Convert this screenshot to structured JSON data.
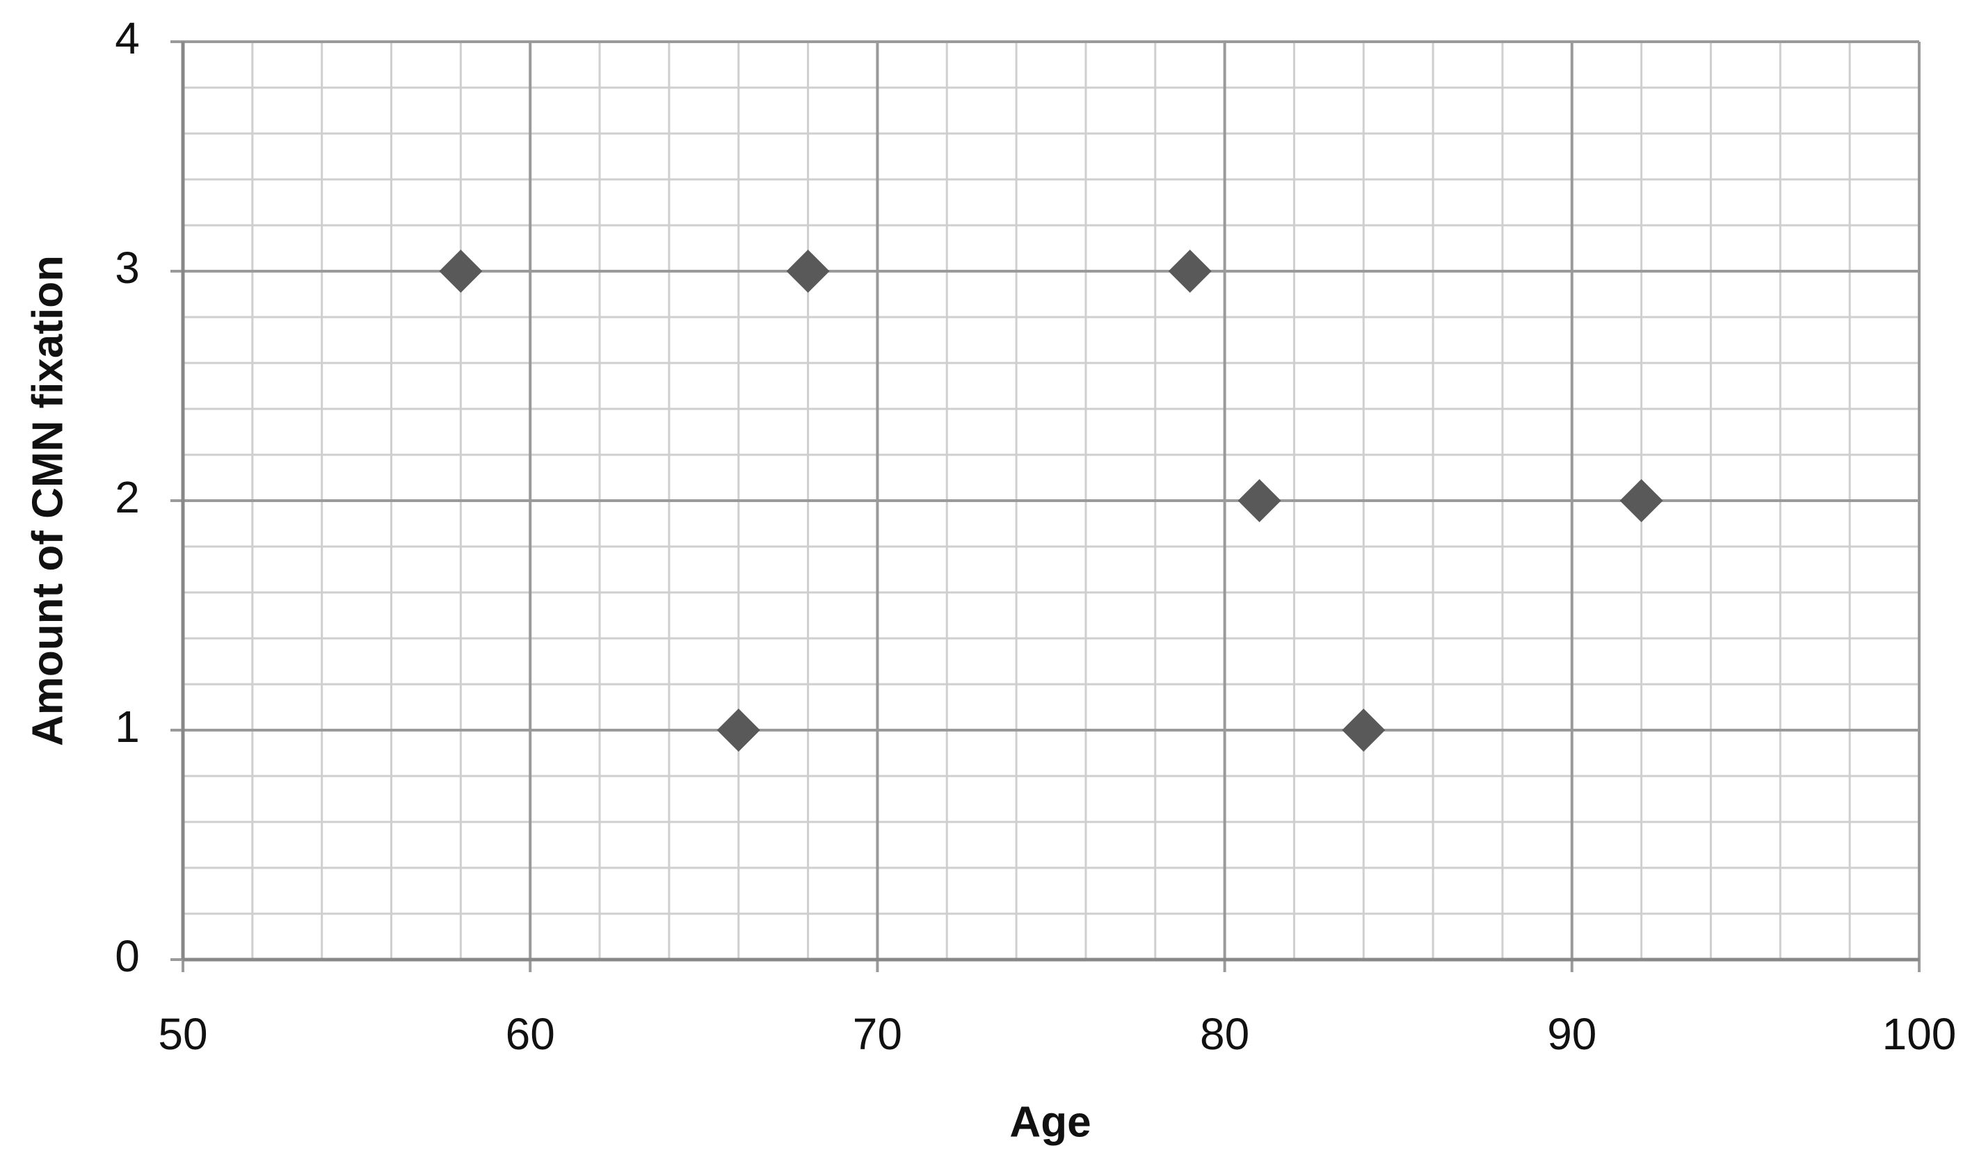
{
  "chart_data": {
    "type": "scatter",
    "x_label": "Age",
    "y_label": "Amount of CMN fixation",
    "x": [
      58,
      66,
      68,
      79,
      81,
      84,
      92
    ],
    "values": [
      3,
      1,
      3,
      3,
      2,
      1,
      2
    ],
    "color": "#595959",
    "xlim": [
      50,
      100
    ],
    "xticks": [
      50,
      60,
      70,
      80,
      90,
      100
    ],
    "ylim": [
      0,
      4
    ],
    "yticks": [
      0,
      1,
      2,
      3,
      4
    ],
    "xminorticks": [
      52,
      54,
      56,
      58,
      62,
      64,
      66,
      68,
      72,
      74,
      76,
      78,
      82,
      84,
      86,
      88,
      92,
      94,
      96,
      98
    ],
    "yminorticks": [
      0.2,
      0.4,
      0.6,
      0.8,
      1.2,
      1.4,
      1.6,
      1.8,
      2.2,
      2.4,
      2.6,
      2.8,
      3.2,
      3.4,
      3.6,
      3.8
    ],
    "grid": true
  }
}
